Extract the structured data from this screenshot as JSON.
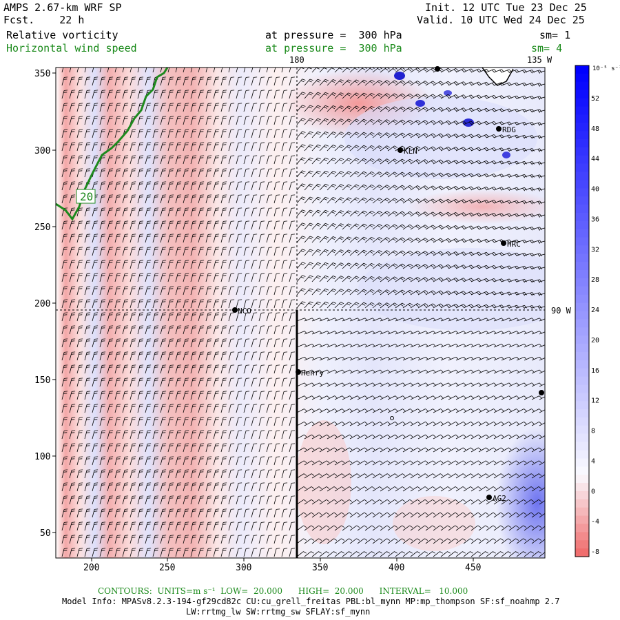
{
  "header": {
    "model": "AMPS 2.67-km WRF SP",
    "fcst": "Fcst.    22 h",
    "init": "Init. 12 UTC Tue 23 Dec 25",
    "valid": "Valid. 10 UTC Wed 24 Dec 25",
    "field1_name": "Relative vorticity",
    "field1_level": "at pressure =  300 hPa",
    "field1_sm": "sm= 1",
    "field2_name": "Horizontal wind speed",
    "field2_level": "at pressure =  300 hPa",
    "field2_sm": "sm= 4"
  },
  "map": {
    "top_labels": [
      "180",
      "135 W"
    ],
    "right_label": "90 W",
    "y_ticks": [
      "350",
      "300",
      "250",
      "200",
      "150",
      "100",
      "50"
    ],
    "x_ticks": [
      "200",
      "250",
      "300",
      "350",
      "400",
      "450"
    ],
    "contour_label": "20",
    "stations": [
      "NCO",
      "Henry",
      "KLN",
      "RDG",
      "HRC",
      "AG2"
    ]
  },
  "colorbar": {
    "unit": "10⁻⁵ s⁻¹",
    "labels": [
      "52",
      "48",
      "44",
      "40",
      "36",
      "32",
      "28",
      "24",
      "20",
      "16",
      "12",
      "8",
      "4",
      "0",
      "-4",
      "-8"
    ],
    "colors": {
      "max": "#0000ff",
      "mid": "#ffffff",
      "min": "#f07070"
    }
  },
  "footer": {
    "contours": "CONTOURS:  UNITS=m s⁻¹  LOW=  20.000      HIGH=  20.000      INTERVAL=   10.000",
    "model_info": "Model Info: MPASv8.2.3-194-gf29cd82c CU:cu_grell_freitas PBL:bl_mynn MP:mp_thompson SF:sf_noahmp 2.7",
    "model_info2": "LW:rrtmg_lw SW:rrtmg_sw SFLAY:sf_mynn"
  }
}
